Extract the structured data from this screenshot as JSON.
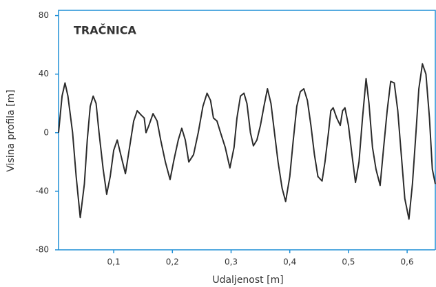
{
  "chart_data": {
    "type": "line",
    "title": "TRAČNICA",
    "xlabel": "Udaljenost [m]",
    "ylabel": "Visina profila [m]",
    "color": "#2b2b2b",
    "frame_color": "#1f8fd6",
    "x": [
      0.006,
      0.012,
      0.017,
      0.022,
      0.03,
      0.036,
      0.043,
      0.05,
      0.055,
      0.06,
      0.065,
      0.07,
      0.075,
      0.082,
      0.088,
      0.094,
      0.1,
      0.106,
      0.112,
      0.12,
      0.127,
      0.134,
      0.14,
      0.147,
      0.152,
      0.155,
      0.16,
      0.167,
      0.174,
      0.18,
      0.188,
      0.196,
      0.203,
      0.21,
      0.216,
      0.222,
      0.228,
      0.236,
      0.244,
      0.252,
      0.259,
      0.265,
      0.27,
      0.276,
      0.282,
      0.29,
      0.298,
      0.305,
      0.31,
      0.316,
      0.322,
      0.327,
      0.333,
      0.338,
      0.344,
      0.35,
      0.356,
      0.362,
      0.368,
      0.374,
      0.38,
      0.387,
      0.393,
      0.4,
      0.406,
      0.412,
      0.418,
      0.424,
      0.43,
      0.436,
      0.442,
      0.448,
      0.455,
      0.46,
      0.466,
      0.47,
      0.474,
      0.48,
      0.486,
      0.49,
      0.494,
      0.5,
      0.506,
      0.512,
      0.518,
      0.524,
      0.53,
      0.535,
      0.541,
      0.547,
      0.554,
      0.56,
      0.566,
      0.572,
      0.578,
      0.584,
      0.59,
      0.596,
      0.603,
      0.609,
      0.615,
      0.62,
      0.626,
      0.632,
      0.638,
      0.643,
      0.648
    ],
    "values": [
      0,
      25,
      34,
      25,
      0,
      -30,
      -58,
      -35,
      -5,
      18,
      25,
      20,
      0,
      -25,
      -42,
      -30,
      -12,
      -5,
      -15,
      -28,
      -10,
      8,
      15,
      12,
      10,
      0,
      5,
      13,
      8,
      -5,
      -20,
      -32,
      -18,
      -5,
      3,
      -5,
      -20,
      -15,
      0,
      18,
      27,
      22,
      10,
      8,
      0,
      -10,
      -24,
      -10,
      10,
      25,
      27,
      20,
      0,
      -9,
      -5,
      5,
      18,
      30,
      20,
      0,
      -20,
      -38,
      -47,
      -30,
      -5,
      18,
      28,
      30,
      22,
      5,
      -15,
      -30,
      -33,
      -20,
      0,
      15,
      17,
      10,
      5,
      15,
      17,
      5,
      -15,
      -34,
      -20,
      10,
      37,
      20,
      -10,
      -25,
      -36,
      -10,
      15,
      35,
      34,
      15,
      -15,
      -45,
      -59,
      -35,
      0,
      30,
      47,
      40,
      10,
      -25,
      -35
    ],
    "xlim": [
      0.006,
      0.648
    ],
    "ylim": [
      -80,
      80
    ],
    "xticks": [
      {
        "value": 0.1,
        "label": "0,1"
      },
      {
        "value": 0.2,
        "label": "0,2"
      },
      {
        "value": 0.3,
        "label": "0,3"
      },
      {
        "value": 0.4,
        "label": "0,4"
      },
      {
        "value": 0.5,
        "label": "0,5"
      },
      {
        "value": 0.6,
        "label": "0,6"
      }
    ],
    "yticks": [
      -80,
      -40,
      0,
      40,
      80
    ]
  }
}
